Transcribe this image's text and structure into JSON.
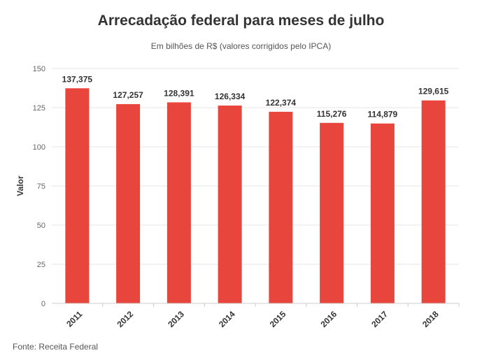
{
  "header": {
    "title": "Arrecadação federal para meses de julho",
    "subtitle": "Em bilhões de R$ (valores corrigidos pelo IPCA)"
  },
  "footer": {
    "source": "Fonte: Receita Federal"
  },
  "chart_data": {
    "type": "bar",
    "title": "Arrecadação federal para meses de julho",
    "subtitle": "Em bilhões de R$ (valores corrigidos pelo IPCA)",
    "xlabel": "",
    "ylabel": "Valor",
    "categories": [
      "2011",
      "2012",
      "2013",
      "2014",
      "2015",
      "2016",
      "2017",
      "2018"
    ],
    "values": [
      137.375,
      127.257,
      128.391,
      126.334,
      122.374,
      115.276,
      114.879,
      129.615
    ],
    "data_labels": [
      "137,375",
      "127,257",
      "128,391",
      "126,334",
      "122,374",
      "115,276",
      "114,879",
      "129,615"
    ],
    "ylim": [
      0,
      150
    ],
    "yticks": [
      0,
      25,
      50,
      75,
      100,
      125,
      150
    ],
    "grid": true,
    "legend": "none",
    "bar_color": "#e8453c",
    "grid_color": "#e6e6e6",
    "axis_color": "#cccccc"
  }
}
